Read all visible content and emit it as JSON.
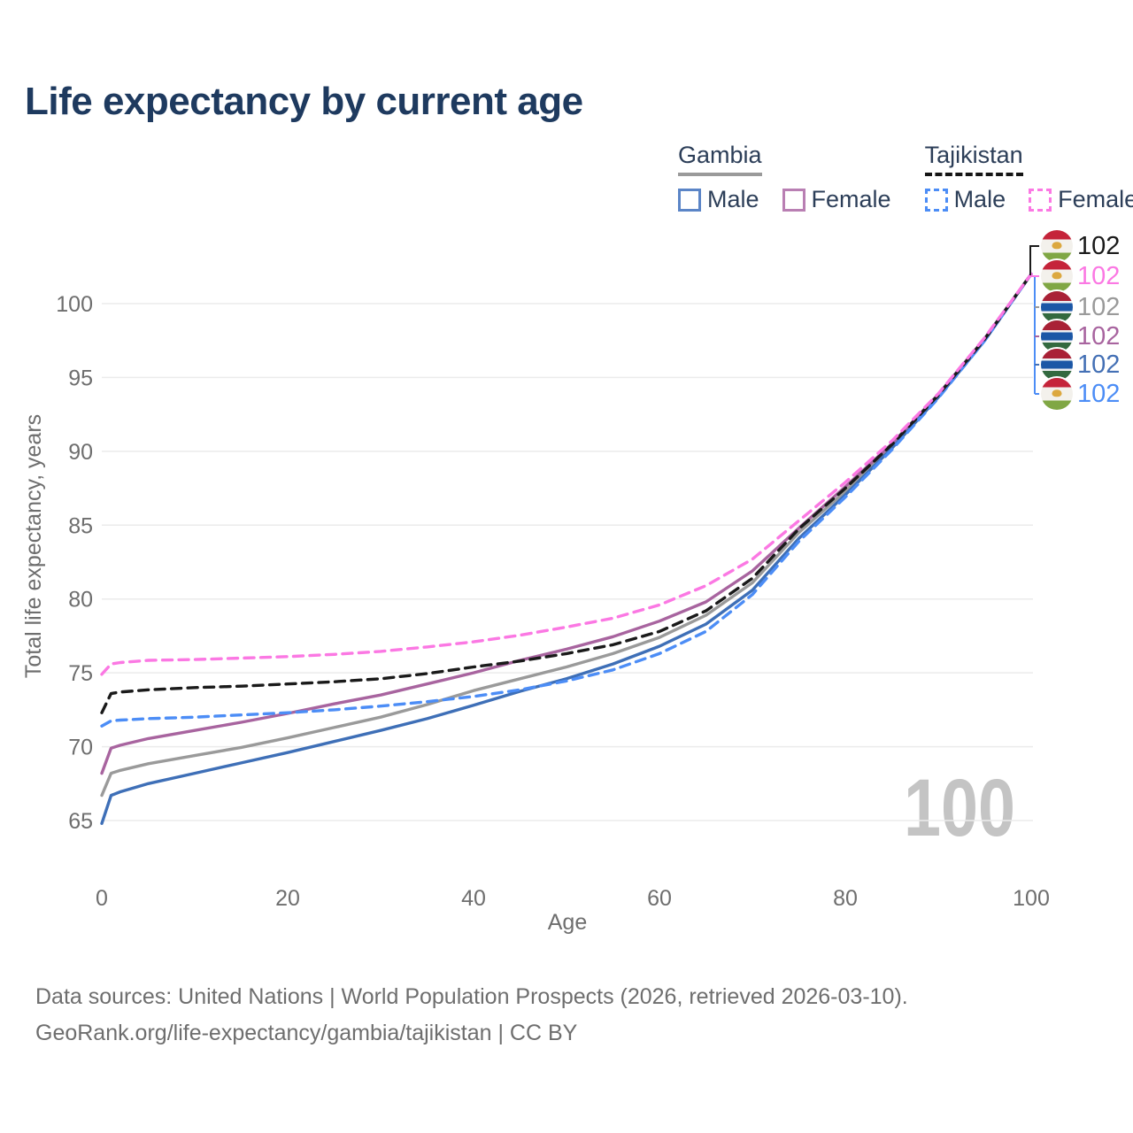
{
  "title": "Life expectancy by current age",
  "legend": {
    "groups": [
      {
        "label": "Gambia",
        "line_style": "solid",
        "underline_color": "#9a9a9a",
        "items": [
          {
            "label": "Male",
            "color": "#5b85c7",
            "dash": false
          },
          {
            "label": "Female",
            "color": "#b97fb3",
            "dash": false
          }
        ]
      },
      {
        "label": "Tajikistan",
        "line_style": "dashed",
        "underline_color": "#151515",
        "items": [
          {
            "label": "Male",
            "color": "#4c8df6",
            "dash": true
          },
          {
            "label": "Female",
            "color": "#fb78e3",
            "dash": true
          }
        ]
      }
    ]
  },
  "chart_data": {
    "type": "line",
    "title": "Life expectancy by current age",
    "xlabel": "Age",
    "ylabel": "Total life expectancy, years",
    "x_ticks": [
      0,
      20,
      40,
      60,
      80,
      100
    ],
    "y_ticks": [
      65,
      70,
      75,
      80,
      85,
      90,
      95,
      100
    ],
    "xlim": [
      0,
      100
    ],
    "ylim": [
      63.5,
      102
    ],
    "grid": true,
    "legend_position": "top-right",
    "watermark": "100",
    "x": [
      0,
      1,
      2,
      5,
      10,
      15,
      20,
      25,
      30,
      35,
      40,
      45,
      50,
      55,
      60,
      65,
      70,
      75,
      80,
      85,
      90,
      95,
      100
    ],
    "series": [
      {
        "id": "gmb_total",
        "name": "Gambia",
        "country": "Gambia",
        "sex": "all",
        "color": "#9a9a9a",
        "dash": false,
        "values": [
          66.7,
          68.2,
          68.4,
          68.85,
          69.4,
          69.95,
          70.6,
          71.3,
          72.0,
          72.85,
          73.8,
          74.6,
          75.4,
          76.3,
          77.4,
          78.9,
          81.1,
          84.5,
          87.3,
          90.35,
          93.75,
          97.6,
          102
        ]
      },
      {
        "id": "gmb_female",
        "name": "Gambia Female",
        "country": "Gambia",
        "sex": "female",
        "color": "#a8649f",
        "dash": false,
        "values": [
          68.2,
          69.9,
          70.1,
          70.55,
          71.1,
          71.65,
          72.25,
          72.9,
          73.5,
          74.25,
          75.0,
          75.85,
          76.6,
          77.45,
          78.5,
          79.8,
          81.9,
          84.8,
          87.6,
          90.5,
          93.85,
          97.65,
          102
        ]
      },
      {
        "id": "gmb_male",
        "name": "Gambia Male",
        "country": "Gambia",
        "sex": "male",
        "color": "#3e6fb7",
        "dash": false,
        "values": [
          64.8,
          66.7,
          66.95,
          67.5,
          68.2,
          68.9,
          69.6,
          70.35,
          71.1,
          71.9,
          72.8,
          73.75,
          74.6,
          75.6,
          76.8,
          78.3,
          80.6,
          84.1,
          87.05,
          90.2,
          93.65,
          97.5,
          102
        ]
      },
      {
        "id": "tjk_male",
        "name": "Tajikistan Male",
        "country": "Tajikistan",
        "sex": "male",
        "color": "#4c8df6",
        "dash": true,
        "values": [
          71.4,
          71.75,
          71.8,
          71.9,
          72.0,
          72.15,
          72.3,
          72.5,
          72.75,
          73.05,
          73.4,
          73.85,
          74.45,
          75.2,
          76.3,
          77.8,
          80.3,
          83.9,
          86.9,
          90.1,
          93.6,
          97.5,
          102
        ]
      },
      {
        "id": "tjk_total",
        "name": "Tajikistan",
        "country": "Tajikistan",
        "sex": "all",
        "color": "#1a1a1a",
        "dash": true,
        "values": [
          72.3,
          73.6,
          73.7,
          73.85,
          74.0,
          74.1,
          74.25,
          74.4,
          74.6,
          74.95,
          75.4,
          75.8,
          76.3,
          76.9,
          77.8,
          79.2,
          81.4,
          84.75,
          87.5,
          90.45,
          93.8,
          97.6,
          102
        ]
      },
      {
        "id": "tjk_female",
        "name": "Tajikistan Female",
        "country": "Tajikistan",
        "sex": "female",
        "color": "#fb78e3",
        "dash": true,
        "values": [
          74.9,
          75.6,
          75.7,
          75.85,
          75.9,
          76.0,
          76.1,
          76.25,
          76.45,
          76.75,
          77.1,
          77.55,
          78.1,
          78.7,
          79.6,
          80.9,
          82.7,
          85.3,
          87.9,
          90.7,
          93.9,
          97.7,
          102
        ]
      }
    ],
    "end_labels": [
      {
        "value": "102",
        "flag": "tajikistan",
        "series": "tjk_total",
        "color": "#1a1a1a"
      },
      {
        "value": "102",
        "flag": "tajikistan",
        "series": "tjk_female",
        "color": "#fb78e3"
      },
      {
        "value": "102",
        "flag": "gambia",
        "series": "gmb_total",
        "color": "#9a9a9a"
      },
      {
        "value": "102",
        "flag": "gambia",
        "series": "gmb_female",
        "color": "#a8649f"
      },
      {
        "value": "102",
        "flag": "gambia",
        "series": "gmb_male",
        "color": "#4470b5"
      },
      {
        "value": "102",
        "flag": "tajikistan",
        "series": "tjk_male",
        "color": "#4c8df6"
      }
    ]
  },
  "footer": {
    "line1": "Data sources: United Nations | World Population Prospects (2026, retrieved 2026-03-10).",
    "line2": "GeoRank.org/life-expectancy/gambia/tajikistan | CC BY"
  }
}
